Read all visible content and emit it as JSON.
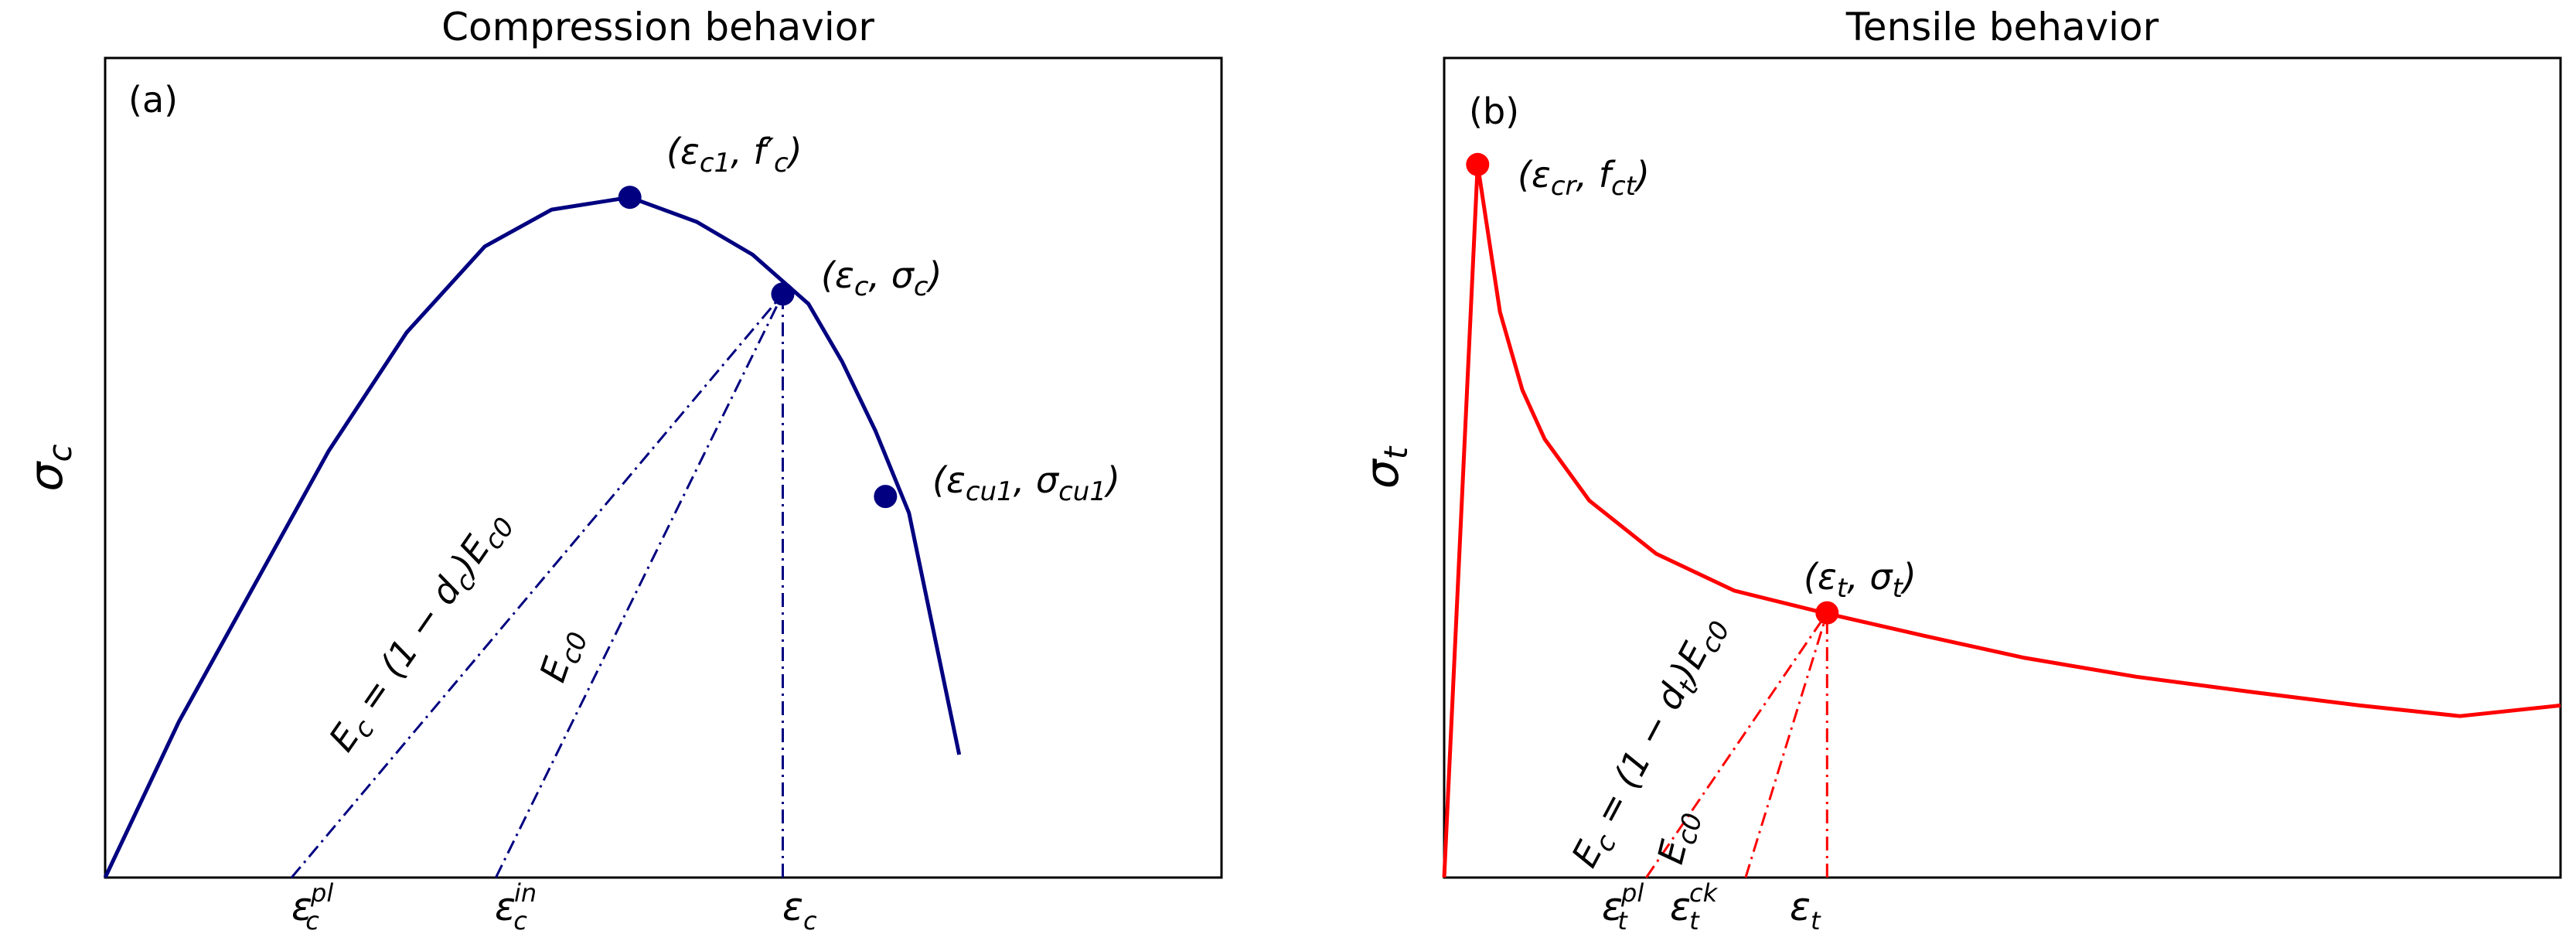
{
  "colors": {
    "compression": "#000080",
    "tensile": "#ff0000",
    "axes": "#000000"
  },
  "chart_data": [
    {
      "type": "line",
      "panel": "(a)",
      "title": "Compression behavior",
      "ylabel": "σ",
      "ylabel_sub": "c",
      "xlabel": "",
      "xlim": [
        0,
        1
      ],
      "ylim": [
        0,
        1
      ],
      "grid": false,
      "series": [
        {
          "style": "solid",
          "x": [
            0,
            0.066,
            0.135,
            0.2,
            0.27,
            0.34,
            0.4,
            0.47,
            0.53,
            0.58,
            0.63,
            0.66,
            0.69,
            0.72,
            0.765
          ],
          "y": [
            0,
            0.19,
            0.36,
            0.52,
            0.665,
            0.77,
            0.815,
            0.83,
            0.8,
            0.76,
            0.7,
            0.63,
            0.545,
            0.445,
            0.15
          ]
        },
        {
          "style": "dash-dot",
          "x": [
            0.167,
            0.607
          ],
          "y": [
            0,
            0.712
          ]
        },
        {
          "style": "dash-dot",
          "x": [
            0.35,
            0.607
          ],
          "y": [
            0,
            0.712
          ]
        },
        {
          "style": "dash-dot",
          "x": [
            0.607,
            0.607
          ],
          "y": [
            0,
            0.712
          ]
        }
      ],
      "points": [
        {
          "x": 0.47,
          "y": 0.83,
          "label": "(ε",
          "sub": "c1",
          "tail": ", f′",
          "sub2": "c",
          "end": ")"
        },
        {
          "x": 0.607,
          "y": 0.712,
          "label": "(ε",
          "sub": "c",
          "tail": ", σ",
          "sub2": "c",
          "end": ")"
        },
        {
          "x": 0.699,
          "y": 0.465,
          "label": "(ε",
          "sub": "cu1",
          "tail": ", σ",
          "sub2": "cu1",
          "end": ")"
        }
      ],
      "tick_labels": [
        {
          "x": 0.167,
          "base": "ε",
          "sub": "c",
          "sup": "pl"
        },
        {
          "x": 0.35,
          "base": "ε",
          "sub": "c",
          "sup": "in"
        },
        {
          "x": 0.607,
          "base": "ε",
          "sub": "c",
          "sup": ""
        }
      ],
      "line_labels": [
        {
          "pre": "E",
          "sub": "c",
          "mid": " = (1 − d",
          "sub2": "c",
          "post": ")E",
          "sub3": "c0"
        },
        {
          "pre": "E",
          "sub": "c0",
          "mid": "",
          "sub2": "",
          "post": "",
          "sub3": ""
        }
      ]
    },
    {
      "type": "line",
      "panel": "(b)",
      "title": "Tensile behavior",
      "ylabel": "σ",
      "ylabel_sub": "t",
      "xlabel": "",
      "xlim": [
        0,
        1
      ],
      "ylim": [
        0,
        1
      ],
      "grid": false,
      "series": [
        {
          "style": "solid",
          "x": [
            0,
            0.03,
            0.05,
            0.07,
            0.09,
            0.13,
            0.19,
            0.26,
            0.34,
            0.43,
            0.52,
            0.62,
            0.72,
            0.82,
            0.91,
            1.0
          ],
          "y": [
            0,
            0.87,
            0.69,
            0.595,
            0.535,
            0.46,
            0.395,
            0.35,
            0.323,
            0.295,
            0.268,
            0.245,
            0.227,
            0.21,
            0.197,
            0.21
          ]
        },
        {
          "style": "dash-dot",
          "x": [
            0.181,
            0.343
          ],
          "y": [
            0,
            0.323
          ]
        },
        {
          "style": "dash-dot",
          "x": [
            0.27,
            0.343
          ],
          "y": [
            0,
            0.323
          ]
        },
        {
          "style": "dash-dot",
          "x": [
            0.343,
            0.343
          ],
          "y": [
            0,
            0.323
          ]
        }
      ],
      "points": [
        {
          "x": 0.03,
          "y": 0.87,
          "label": "(ε",
          "sub": "cr",
          "tail": ", f",
          "sub2": "ct",
          "end": ")"
        },
        {
          "x": 0.343,
          "y": 0.323,
          "label": "(ε",
          "sub": "t",
          "tail": ", σ",
          "sub2": "t",
          "end": ")"
        }
      ],
      "tick_labels": [
        {
          "x": 0.181,
          "base": "ε",
          "sub": "t",
          "sup": "pl"
        },
        {
          "x": 0.27,
          "base": "ε",
          "sub": "t",
          "sup": "ck"
        },
        {
          "x": 0.343,
          "base": "ε",
          "sub": "t",
          "sup": ""
        }
      ],
      "line_labels": [
        {
          "pre": "E",
          "sub": "c",
          "mid": " = (1 − d",
          "sub2": "t",
          "post": ")E",
          "sub3": "c0"
        },
        {
          "pre": "E",
          "sub": "c0",
          "mid": "",
          "sub2": "",
          "post": "",
          "sub3": ""
        }
      ]
    }
  ]
}
